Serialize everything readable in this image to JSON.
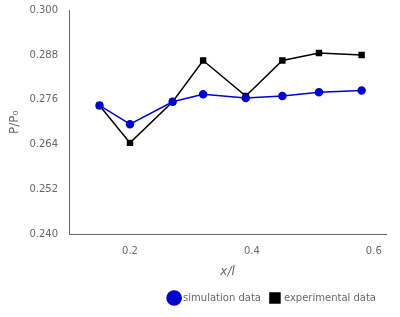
{
  "chart_data": {
    "type": "line",
    "x": [
      0.15,
      0.2,
      0.27,
      0.32,
      0.39,
      0.45,
      0.51,
      0.58
    ],
    "series": [
      {
        "name": "simulation data",
        "color": "#0000cc",
        "marker": "circle",
        "line_style": "solid",
        "values": [
          0.2745,
          0.2695,
          0.2755,
          0.2775,
          0.2765,
          0.277,
          0.278,
          0.2785
        ]
      },
      {
        "name": "experimental data",
        "color": "#000000",
        "marker": "square",
        "line_style": "solid",
        "values": [
          0.2745,
          0.2645,
          0.2755,
          0.2865,
          0.277,
          0.2865,
          0.2885,
          0.288
        ]
      }
    ],
    "xlabel": "x/l",
    "ylabel": "P/P₀",
    "xlim": [
      0.1,
      0.62
    ],
    "ylim": [
      0.24,
      0.3
    ],
    "xticks": [
      0.2,
      0.4,
      0.6
    ],
    "yticks": [
      {
        "value": 0.24,
        "label": "0.240"
      },
      0.252,
      0.264,
      0.276,
      0.288,
      {
        "value": 0.3,
        "label": "0.300"
      }
    ],
    "grid": false,
    "legend": "lower right"
  }
}
